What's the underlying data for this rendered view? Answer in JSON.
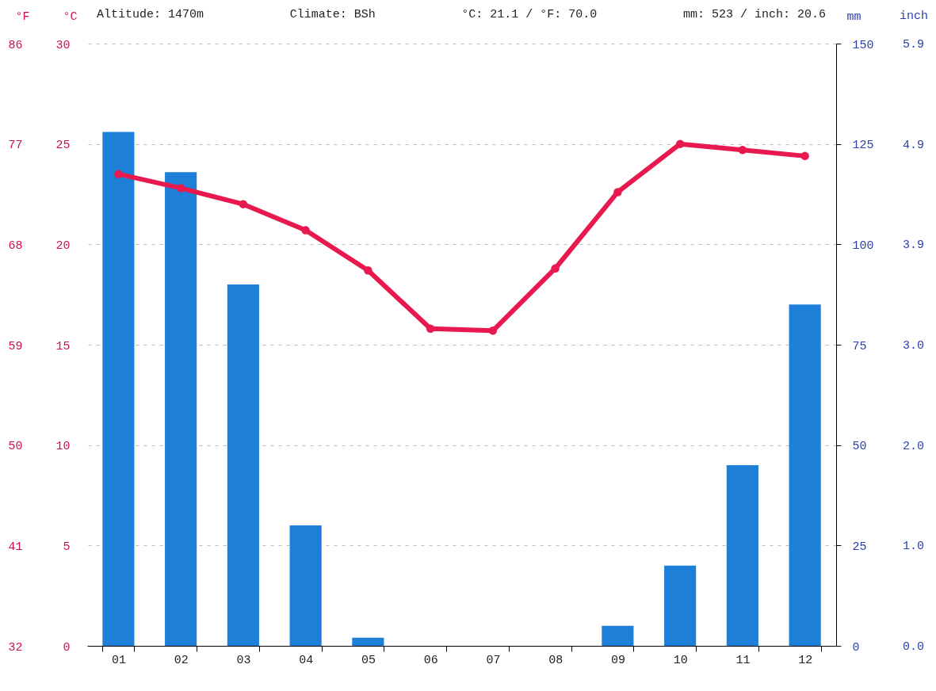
{
  "chart_data": {
    "type": "bar",
    "categories": [
      "01",
      "02",
      "03",
      "04",
      "05",
      "06",
      "07",
      "08",
      "09",
      "10",
      "11",
      "12"
    ],
    "ylabel": "°C",
    "y2label": "mm",
    "y3label": "°F",
    "annotations": [
      "Altitude: 1470m",
      "Climate: BSh",
      "°C: 21.1 / °F: 70.0",
      "mm: 523 / inch: 20.6",
      "inch",
      "0.0",
      "1.0",
      "2.0",
      "3.0",
      "3.9",
      "4.9",
      "5.9"
    ],
    "series": [
      {
        "axis": "y2",
        "color": "#1e7fd8",
        "values": [
          128,
          118,
          90,
          30,
          2,
          0,
          0,
          0,
          5,
          20,
          45,
          85
        ]
      },
      {
        "type": "line",
        "axis": "y",
        "color": "#e8194f",
        "values": [
          23.5,
          22.8,
          22.0,
          20.7,
          18.7,
          15.8,
          15.7,
          18.8,
          22.6,
          25.0,
          24.7,
          24.4
        ]
      }
    ],
    "ylim": [
      0,
      30
    ],
    "yticks": [
      0,
      5,
      10,
      15,
      20,
      25,
      30
    ],
    "y2lim": [
      0,
      150
    ],
    "y2ticks": [
      0,
      25,
      50,
      75,
      100,
      125,
      150
    ],
    "y3lim": [
      32,
      86
    ],
    "y3ticks": [
      32,
      41,
      50,
      59,
      68,
      77,
      86
    ],
    "grid": "y",
    "marker": "circle",
    "line_style": "solid"
  }
}
